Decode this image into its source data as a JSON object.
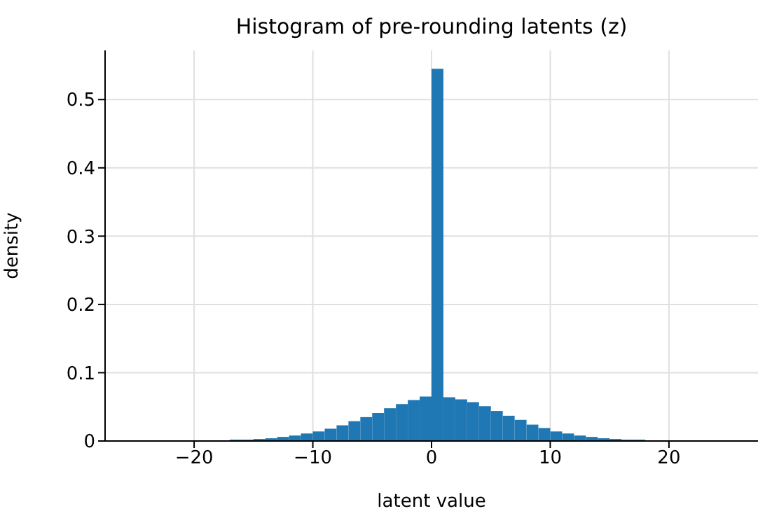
{
  "chart_data": {
    "type": "histogram",
    "title": "Histogram of pre-rounding latents (z)",
    "xlabel": "latent value",
    "ylabel": "density",
    "color": "#1f77b4",
    "bins": [
      -25,
      -24,
      -23,
      -22,
      -21,
      -20,
      -19,
      -18,
      -17,
      -16,
      -15,
      -14,
      -13,
      -12,
      -11,
      -10,
      -9,
      -8,
      -7,
      -6,
      -5,
      -4,
      -3,
      -2,
      -1,
      0,
      1,
      2,
      3,
      4,
      5,
      6,
      7,
      8,
      9,
      10,
      11,
      12,
      13,
      14,
      15,
      16,
      17,
      18,
      19,
      20,
      21,
      22,
      23,
      24,
      25
    ],
    "values": [
      0,
      0,
      0,
      0,
      0.001,
      0.001,
      0.001,
      0.001,
      0.002,
      0.002,
      0.003,
      0.004,
      0.006,
      0.008,
      0.011,
      0.014,
      0.018,
      0.023,
      0.029,
      0.035,
      0.041,
      0.048,
      0.054,
      0.06,
      0.065,
      0.545,
      0.064,
      0.061,
      0.057,
      0.051,
      0.044,
      0.037,
      0.031,
      0.024,
      0.019,
      0.014,
      0.011,
      0.008,
      0.006,
      0.004,
      0.003,
      0.002,
      0.002,
      0.001,
      0.001,
      0.001,
      0,
      0,
      0,
      0
    ],
    "xlim": [
      -27.5,
      27.5
    ],
    "xticks": [
      -20,
      -10,
      0,
      10,
      20
    ],
    "ylim": [
      0,
      0.572
    ],
    "yticks": [
      0,
      0.1,
      0.2,
      0.3,
      0.4,
      0.5
    ],
    "grid": true
  }
}
